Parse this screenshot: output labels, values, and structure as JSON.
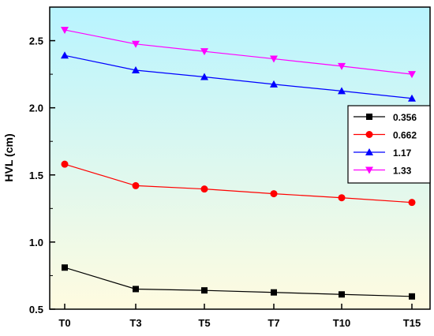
{
  "chart_data": {
    "type": "line",
    "title": "",
    "xlabel": "",
    "ylabel": "HVL (cm)",
    "categories": [
      "T0",
      "T3",
      "T5",
      "T7",
      "T10",
      "T15"
    ],
    "ylim": [
      0.5,
      2.75
    ],
    "yticks": [
      0.5,
      1.0,
      1.5,
      2.0,
      2.5
    ],
    "ytick_labels": [
      "0.5",
      "1.0",
      "1.5",
      "2.0",
      "2.5"
    ],
    "grid": false,
    "legend_position": "right",
    "series": [
      {
        "name": "0.356",
        "color": "#000000",
        "marker": "square",
        "values": [
          0.81,
          0.65,
          0.64,
          0.625,
          0.61,
          0.595
        ]
      },
      {
        "name": "0.662",
        "color": "#ff0000",
        "marker": "circle",
        "values": [
          1.58,
          1.42,
          1.395,
          1.36,
          1.33,
          1.295
        ]
      },
      {
        "name": "1.17",
        "color": "#0000ff",
        "marker": "triangle-up",
        "values": [
          2.39,
          2.28,
          2.23,
          2.175,
          2.125,
          2.07
        ]
      },
      {
        "name": "1.33",
        "color": "#ff00ff",
        "marker": "triangle-down",
        "values": [
          2.58,
          2.475,
          2.42,
          2.365,
          2.31,
          2.25
        ]
      }
    ],
    "background_gradient": [
      "#b8f4ff",
      "#fffbe0"
    ]
  }
}
